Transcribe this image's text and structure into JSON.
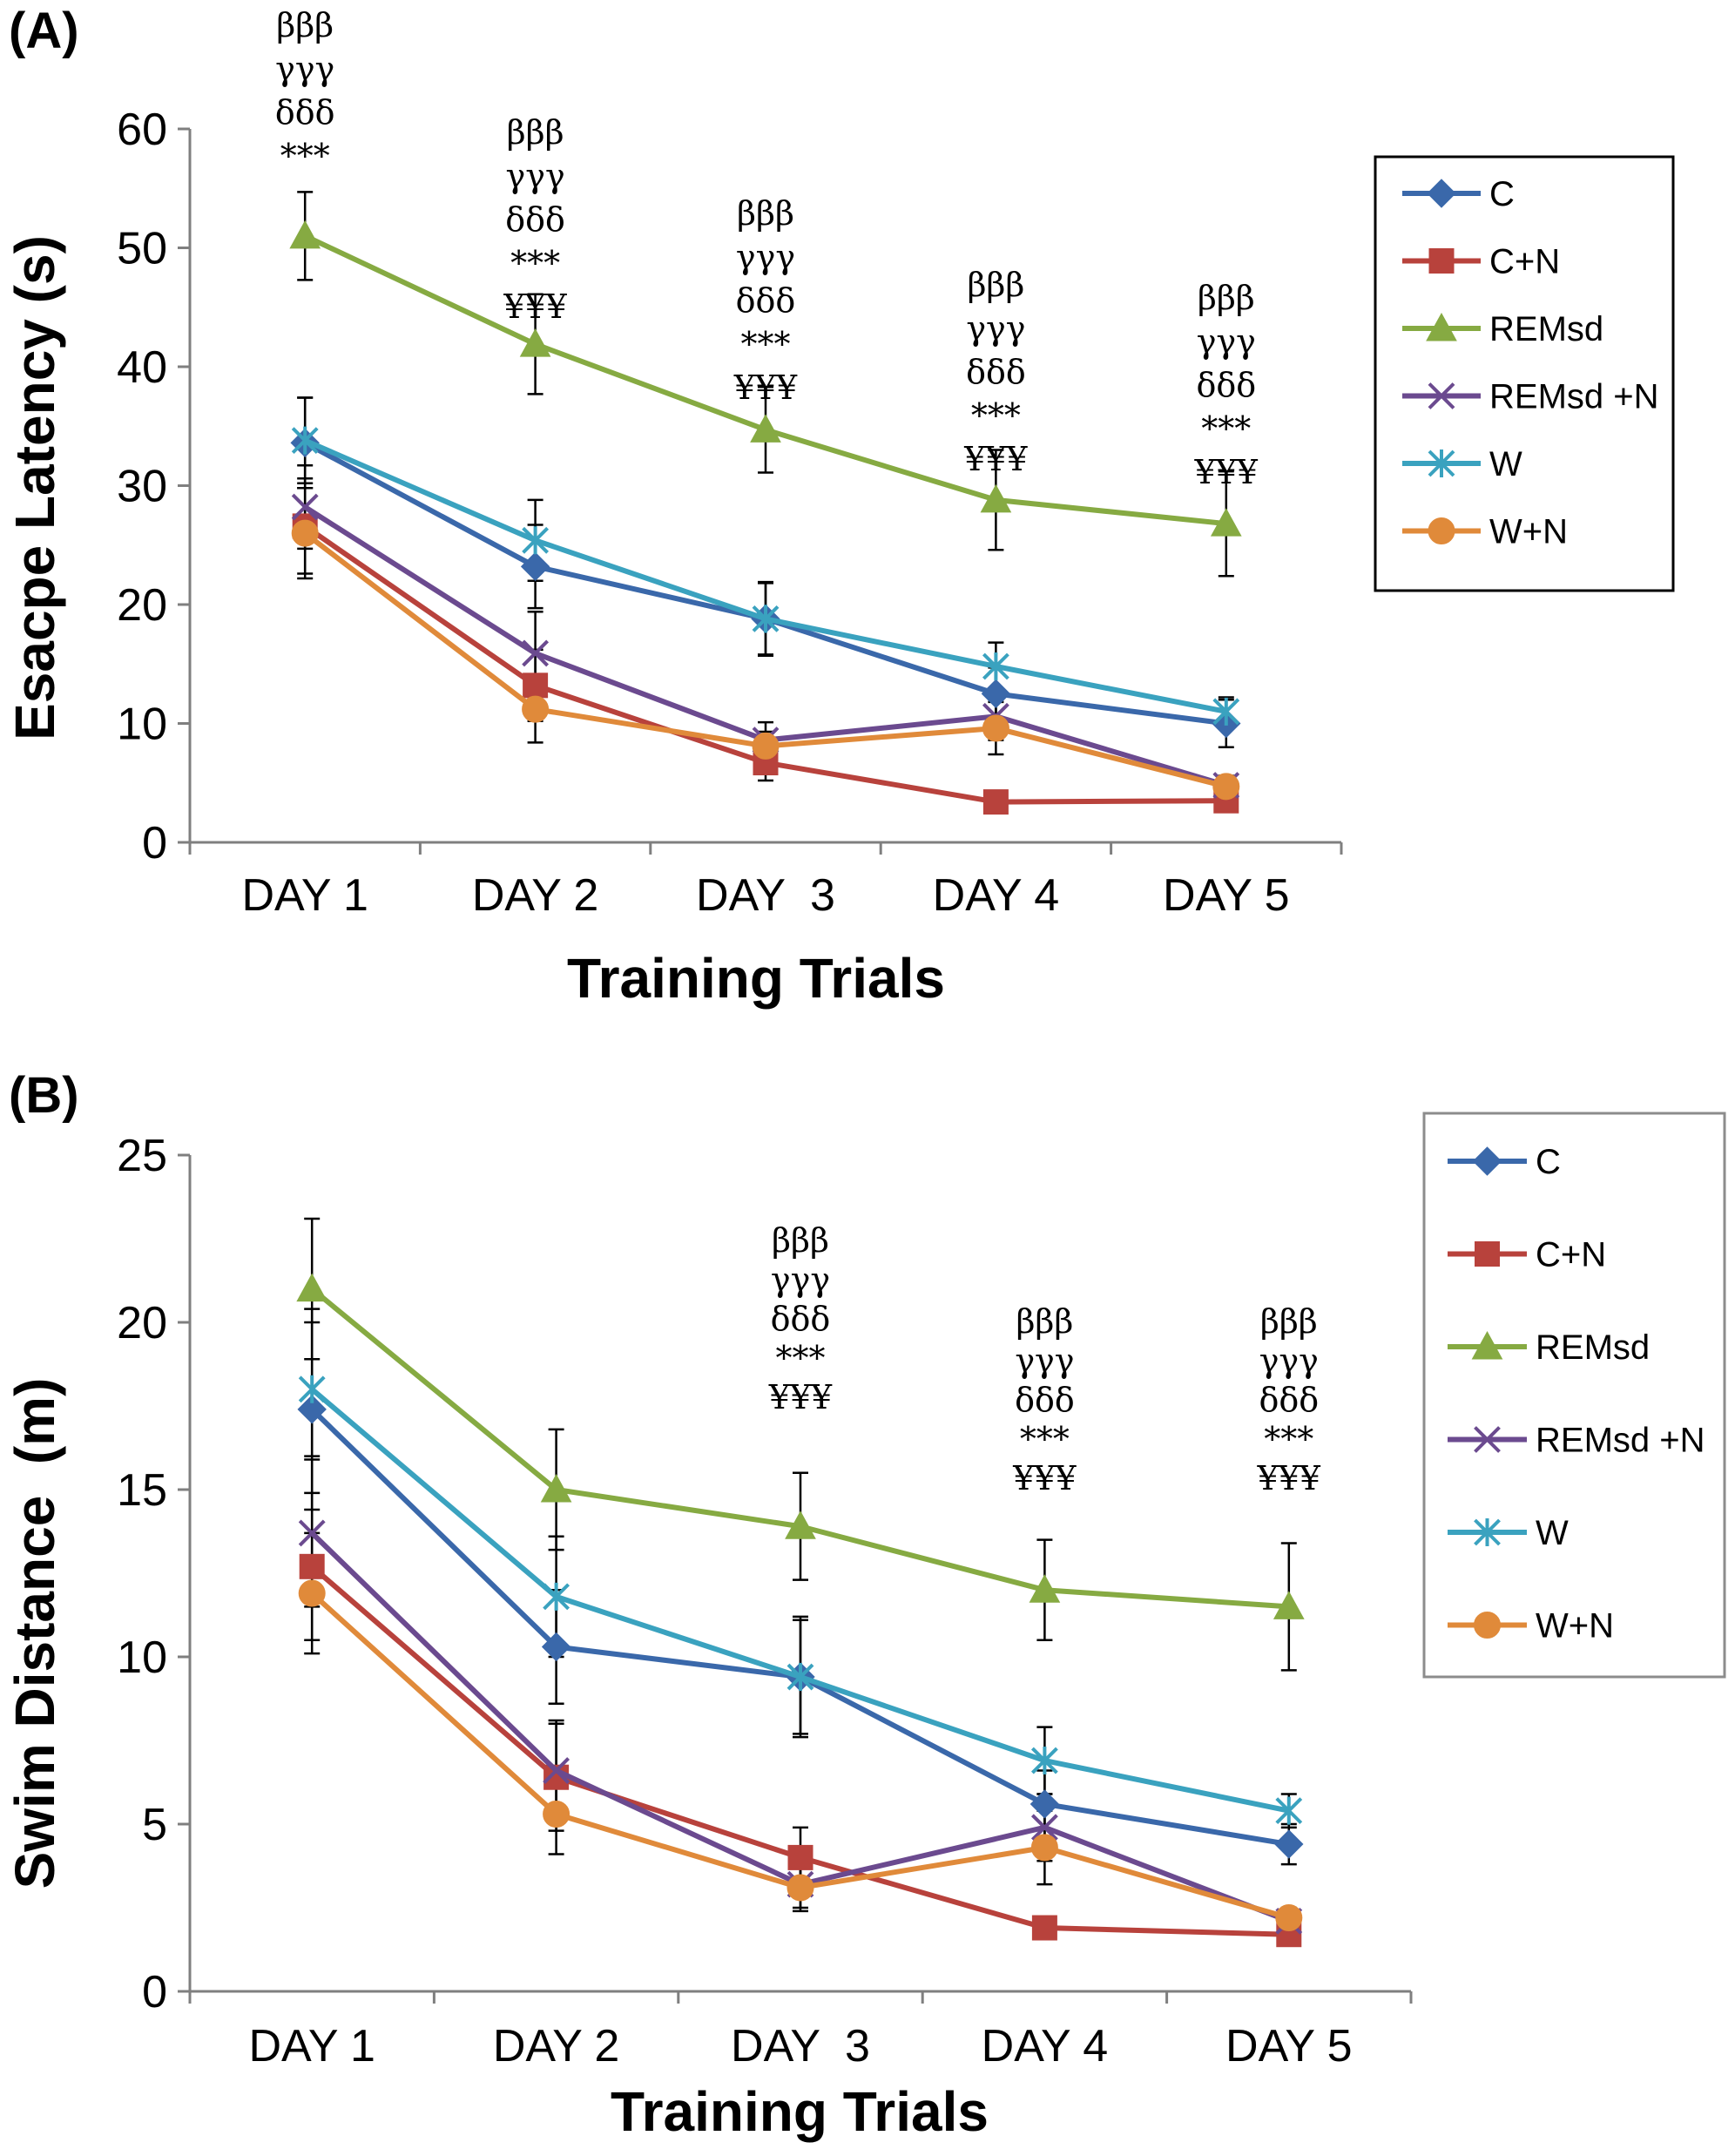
{
  "colors": {
    "C": "#3a68aa",
    "C+N": "#b8423c",
    "REMsd": "#86aa42",
    "REMsd +N": "#6b4a8f",
    "W": "#3aa2bf",
    "W+N": "#e08a3a"
  },
  "chart_data": [
    {
      "type": "line",
      "panel_label": "(A)",
      "title": "",
      "xlabel": "Training Trials",
      "ylabel": "Esacpe Latency (s)",
      "categories": [
        "DAY 1",
        "DAY 2",
        "DAY  3",
        "DAY 4",
        "DAY 5"
      ],
      "ylim": [
        0,
        60
      ],
      "yticks": [
        "0",
        "10",
        "20",
        "30",
        "40",
        "50",
        "60"
      ],
      "grid": false,
      "legend_position": "top-right",
      "series": [
        {
          "name": "C",
          "marker": "diamond",
          "values": [
            33.6,
            23.2,
            18.8,
            12.5,
            10.0
          ],
          "errors": [
            3.8,
            3.5,
            3.0,
            2.2,
            2.0
          ]
        },
        {
          "name": "C+N",
          "marker": "square",
          "values": [
            26.6,
            13.2,
            6.7,
            3.4,
            3.5
          ],
          "errors": [
            4.0,
            3.0,
            1.5,
            0.5,
            0.5
          ]
        },
        {
          "name": "REMsd",
          "marker": "triangle",
          "values": [
            51.0,
            41.9,
            34.7,
            28.8,
            26.8
          ],
          "errors": [
            3.7,
            4.2,
            3.6,
            4.2,
            4.4
          ]
        },
        {
          "name": "REMsd +N",
          "marker": "x",
          "values": [
            28.2,
            15.9,
            8.6,
            10.6,
            4.8
          ],
          "errors": [
            3.5,
            3.5,
            1.5,
            2.0,
            0.8
          ]
        },
        {
          "name": "W",
          "marker": "asterisk",
          "values": [
            33.8,
            25.4,
            18.8,
            14.8,
            11.0
          ],
          "errors": [
            3.6,
            3.4,
            3.1,
            2.0,
            1.2
          ]
        },
        {
          "name": "W+N",
          "marker": "circle",
          "values": [
            26.0,
            11.2,
            8.1,
            9.6,
            4.7
          ],
          "errors": [
            3.8,
            2.8,
            1.2,
            2.2,
            0.6
          ]
        }
      ],
      "annotations": [
        {
          "category": "DAY 1",
          "lines": [
            "βββ",
            "γγγ",
            "δδδ",
            "***"
          ]
        },
        {
          "category": "DAY 2",
          "lines": [
            "βββ",
            "γγγ",
            "δδδ",
            "***",
            "¥¥¥"
          ]
        },
        {
          "category": "DAY  3",
          "lines": [
            "βββ",
            "γγγ",
            "δδδ",
            "***",
            "¥¥¥"
          ]
        },
        {
          "category": "DAY 4",
          "lines": [
            "βββ",
            "γγγ",
            "δδδ",
            "***",
            "¥¥¥"
          ]
        },
        {
          "category": "DAY 5",
          "lines": [
            "βββ",
            "γγγ",
            "δδδ",
            "***",
            "¥¥¥"
          ]
        }
      ]
    },
    {
      "type": "line",
      "panel_label": "(B)",
      "title": "",
      "xlabel": "Training Trials",
      "ylabel": "Swim Distance  (m)",
      "categories": [
        "DAY 1",
        "DAY 2",
        "DAY  3",
        "DAY 4",
        "DAY 5"
      ],
      "ylim": [
        0,
        25
      ],
      "yticks": [
        "0",
        "5",
        "10",
        "15",
        "20",
        "25"
      ],
      "grid": false,
      "legend_position": "top-right",
      "series": [
        {
          "name": "C",
          "marker": "diamond",
          "values": [
            17.4,
            10.3,
            9.4,
            5.6,
            4.4
          ],
          "errors": [
            3.0,
            1.7,
            1.8,
            1.0,
            0.6
          ]
        },
        {
          "name": "C+N",
          "marker": "square",
          "values": [
            12.7,
            6.4,
            4.0,
            1.9,
            1.7
          ],
          "errors": [
            2.2,
            1.6,
            0.9,
            0.3,
            0.3
          ]
        },
        {
          "name": "REMsd",
          "marker": "triangle",
          "values": [
            21.0,
            15.0,
            13.9,
            12.0,
            11.5
          ],
          "errors": [
            2.1,
            1.8,
            1.6,
            1.5,
            1.9
          ]
        },
        {
          "name": "REMsd +N",
          "marker": "x",
          "values": [
            13.7,
            6.6,
            3.2,
            4.9,
            2.1
          ],
          "errors": [
            2.2,
            1.5,
            0.7,
            1.0,
            0.3
          ]
        },
        {
          "name": "W",
          "marker": "asterisk",
          "values": [
            18.0,
            11.8,
            9.4,
            6.9,
            5.4
          ],
          "errors": [
            2.0,
            1.8,
            1.7,
            1.0,
            0.5
          ]
        },
        {
          "name": "W+N",
          "marker": "circle",
          "values": [
            11.9,
            5.3,
            3.1,
            4.3,
            2.2
          ],
          "errors": [
            1.8,
            1.2,
            0.7,
            1.1,
            0.3
          ]
        }
      ],
      "annotations": [
        {
          "category": "DAY  3",
          "lines": [
            "βββ",
            "γγγ",
            "δδδ",
            "***",
            "¥¥¥"
          ]
        },
        {
          "category": "DAY 4",
          "lines": [
            "βββ",
            "γγγ",
            "δδδ",
            "***",
            "¥¥¥"
          ]
        },
        {
          "category": "DAY 5",
          "lines": [
            "βββ",
            "γγγ",
            "δδδ",
            "***",
            "¥¥¥"
          ]
        }
      ]
    }
  ]
}
